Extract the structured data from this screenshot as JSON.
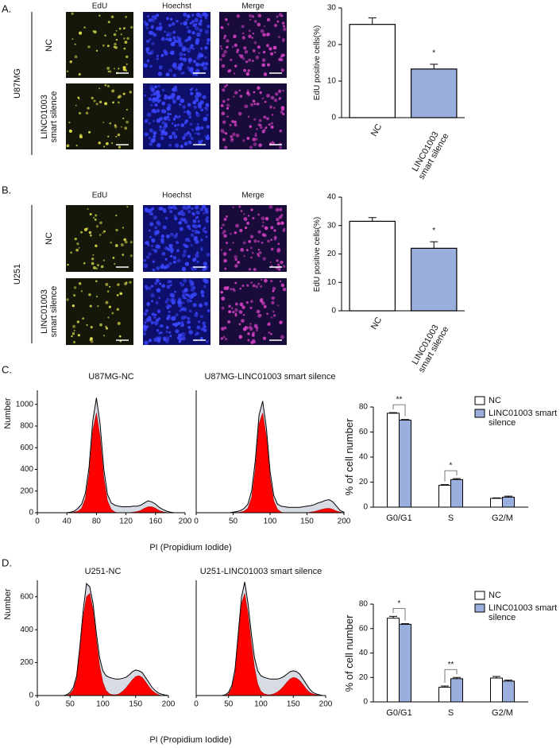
{
  "panels": {
    "A": {
      "letter": "A.",
      "cell_line": "U87MG",
      "columns": [
        "EdU",
        "Hoechst",
        "Merge"
      ],
      "rows": [
        "NC",
        "LINC01003 smart silence"
      ]
    },
    "B": {
      "letter": "B.",
      "cell_line": "U251",
      "columns": [
        "EdU",
        "Hoechst",
        "Merge"
      ],
      "rows": [
        "NC",
        "LINC01003 smart silence"
      ]
    },
    "C": {
      "letter": "C.",
      "xlabel": "PI (Propidium Iodide)",
      "ylabel": "Number"
    },
    "D": {
      "letter": "D.",
      "xlabel": "PI (Propidium Iodide)",
      "ylabel": "Number"
    }
  },
  "chart_data": [
    {
      "type": "bar",
      "ylabel": "EdU positive cells(%)",
      "categories": [
        "NC",
        "LINC01003 smart silence"
      ],
      "values": [
        25.5,
        13.3
      ],
      "errors": [
        1.8,
        1.3
      ],
      "colors": [
        "#ffffff",
        "#9aafdd"
      ],
      "significance": [
        null,
        "*"
      ],
      "ylim": [
        0,
        30
      ],
      "yticks": [
        0,
        10,
        20,
        30
      ]
    },
    {
      "type": "bar",
      "ylabel": "EdU positive cells(%)",
      "categories": [
        "NC",
        "LINC01003 smart silence"
      ],
      "values": [
        31.5,
        22
      ],
      "errors": [
        1.3,
        2.3
      ],
      "colors": [
        "#ffffff",
        "#9aafdd"
      ],
      "significance": [
        null,
        "*"
      ],
      "ylim": [
        0,
        40
      ],
      "yticks": [
        0,
        10,
        20,
        30,
        40
      ]
    },
    {
      "type": "area",
      "title": "U87MG-NC",
      "x": [
        40,
        45,
        50,
        55,
        60,
        65,
        70,
        75,
        80,
        85,
        90,
        95,
        100,
        105,
        110,
        115,
        120,
        125,
        130,
        135,
        140,
        145,
        150,
        155,
        160,
        165,
        170,
        175,
        180,
        185,
        190,
        195,
        200
      ],
      "series": [
        {
          "color": "#d6dbe4",
          "values": [
            0,
            5,
            15,
            40,
            80,
            180,
            420,
            850,
            1060,
            820,
            400,
            170,
            90,
            70,
            60,
            55,
            55,
            55,
            60,
            60,
            70,
            90,
            110,
            100,
            80,
            50,
            30,
            15,
            5,
            0,
            0,
            0,
            0
          ]
        },
        {
          "color": "#ff0000",
          "values": [
            0,
            0,
            5,
            15,
            40,
            130,
            350,
            760,
            920,
            700,
            320,
            110,
            30,
            5,
            0,
            0,
            0,
            0,
            5,
            10,
            20,
            40,
            55,
            55,
            40,
            20,
            8,
            2,
            0,
            0,
            0,
            0,
            0
          ]
        }
      ],
      "xlim": [
        0,
        200
      ],
      "xticks": [
        0,
        40,
        80,
        120,
        160,
        200
      ],
      "ylim": [
        0,
        1130
      ],
      "yticks": [
        0,
        200,
        400,
        600,
        800,
        1000
      ]
    },
    {
      "type": "area",
      "title": "U87MG-LINC01003 smart silence",
      "x": [
        40,
        45,
        50,
        55,
        60,
        65,
        70,
        75,
        80,
        85,
        90,
        95,
        100,
        105,
        110,
        115,
        120,
        125,
        130,
        135,
        140,
        145,
        150,
        155,
        160,
        165,
        170,
        175,
        180,
        185,
        190,
        195,
        200
      ],
      "series": [
        {
          "color": "#d6dbe4",
          "values": [
            0,
            0,
            5,
            10,
            20,
            40,
            80,
            200,
            480,
            900,
            1030,
            780,
            380,
            160,
            80,
            60,
            55,
            50,
            50,
            50,
            50,
            55,
            60,
            65,
            75,
            90,
            100,
            115,
            120,
            100,
            60,
            20,
            5
          ]
        },
        {
          "color": "#ff0000",
          "values": [
            0,
            0,
            0,
            0,
            5,
            15,
            40,
            140,
            400,
            820,
            920,
            700,
            320,
            110,
            30,
            5,
            0,
            0,
            0,
            0,
            0,
            0,
            0,
            5,
            10,
            20,
            30,
            38,
            40,
            30,
            15,
            5,
            0
          ]
        }
      ],
      "xlim": [
        0,
        200
      ],
      "xticks": [
        0,
        50,
        100,
        150,
        200
      ],
      "ylim": [
        0,
        1130
      ]
    },
    {
      "type": "grouped_bar",
      "ylabel": "% of cell number",
      "categories": [
        "G0/G1",
        "S",
        "G2/M"
      ],
      "series": [
        {
          "name": "NC",
          "color": "#ffffff",
          "values": [
            75,
            17.5,
            7
          ],
          "errors": [
            0.5,
            0.5,
            0.4
          ]
        },
        {
          "name": "LINC01003 smart silence",
          "color": "#9aafdd",
          "values": [
            69.5,
            22,
            8
          ],
          "errors": [
            0.5,
            0.8,
            0.8
          ]
        }
      ],
      "significance": [
        "**",
        "*",
        null
      ],
      "ylim": [
        0,
        80
      ],
      "yticks": [
        0,
        20,
        40,
        60,
        80
      ]
    },
    {
      "type": "area",
      "title": "U251-NC",
      "x": [
        40,
        45,
        50,
        55,
        60,
        65,
        70,
        75,
        80,
        85,
        90,
        95,
        100,
        105,
        110,
        115,
        120,
        125,
        130,
        135,
        140,
        145,
        150,
        155,
        160,
        165,
        170,
        175,
        180,
        185,
        190,
        195,
        200
      ],
      "series": [
        {
          "color": "#d6dbe4",
          "values": [
            0,
            5,
            20,
            50,
            120,
            300,
            520,
            680,
            660,
            560,
            380,
            230,
            150,
            120,
            110,
            105,
            100,
            100,
            105,
            110,
            125,
            145,
            155,
            150,
            140,
            110,
            80,
            50,
            30,
            15,
            8,
            3,
            0
          ]
        },
        {
          "color": "#ff0000",
          "values": [
            0,
            0,
            10,
            35,
            100,
            270,
            480,
            600,
            620,
            520,
            340,
            180,
            80,
            30,
            10,
            5,
            5,
            10,
            25,
            45,
            70,
            95,
            115,
            120,
            110,
            85,
            55,
            30,
            15,
            5,
            0,
            0,
            0
          ]
        }
      ],
      "xlim": [
        0,
        200
      ],
      "xticks": [
        0,
        50,
        100,
        150,
        200
      ],
      "ylim": [
        0,
        700
      ],
      "yticks": [
        0,
        200,
        400,
        600
      ]
    },
    {
      "type": "area",
      "title": "U251-LINC01003 smart silence",
      "x": [
        40,
        45,
        50,
        55,
        60,
        65,
        70,
        75,
        80,
        85,
        90,
        95,
        100,
        105,
        110,
        115,
        120,
        125,
        130,
        135,
        140,
        145,
        150,
        155,
        160,
        165,
        170,
        175,
        180,
        185,
        190,
        195,
        200
      ],
      "series": [
        {
          "color": "#d6dbe4",
          "values": [
            0,
            5,
            20,
            60,
            160,
            380,
            600,
            690,
            560,
            380,
            230,
            150,
            120,
            110,
            105,
            100,
            100,
            100,
            105,
            115,
            130,
            145,
            150,
            145,
            130,
            100,
            70,
            40,
            20,
            10,
            5,
            0,
            0
          ]
        },
        {
          "color": "#ff0000",
          "values": [
            0,
            0,
            10,
            45,
            130,
            340,
            560,
            620,
            500,
            320,
            170,
            70,
            25,
            10,
            5,
            5,
            10,
            20,
            35,
            55,
            80,
            100,
            110,
            105,
            90,
            65,
            40,
            20,
            10,
            5,
            0,
            0,
            0
          ]
        }
      ],
      "xlim": [
        0,
        200
      ],
      "xticks": [
        0,
        50,
        100,
        150,
        200
      ],
      "ylim": [
        0,
        700
      ]
    },
    {
      "type": "grouped_bar",
      "ylabel": "% of cell number",
      "categories": [
        "G0/G1",
        "S",
        "G2/M"
      ],
      "series": [
        {
          "name": "NC",
          "color": "#ffffff",
          "values": [
            68.5,
            12,
            19.5
          ],
          "errors": [
            1.5,
            1,
            1.3
          ]
        },
        {
          "name": "LINC01003 smart silence",
          "color": "#9aafdd",
          "values": [
            63.5,
            19,
            17
          ],
          "errors": [
            0.5,
            1,
            0.8
          ]
        }
      ],
      "significance": [
        "*",
        "**",
        null
      ],
      "ylim": [
        0,
        80
      ],
      "yticks": [
        0,
        20,
        40,
        60,
        80
      ]
    }
  ]
}
